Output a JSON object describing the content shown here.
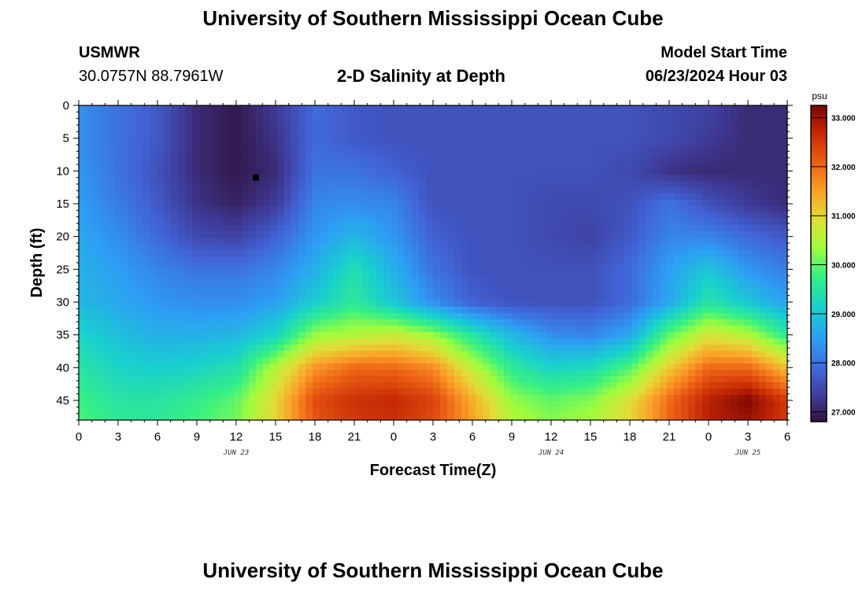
{
  "header": {
    "title": "University of Southern Mississippi Ocean Cube",
    "station": "USMWR",
    "coords": "30.0757N  88.7961W",
    "subtitle": "2-D Salinity at Depth",
    "start_label": "Model Start Time",
    "start_value": "06/23/2024 Hour 03"
  },
  "footer": {
    "title": "University of Southern Mississippi Ocean Cube"
  },
  "chart_data": {
    "type": "heatmap",
    "title": "2-D Salinity at Depth",
    "xlabel": "Forecast Time(Z)",
    "ylabel": "Depth (ft)",
    "x_ticks": [
      "0",
      "3",
      "6",
      "9",
      "12",
      "15",
      "18",
      "21",
      "0",
      "3",
      "6",
      "9",
      "12",
      "15",
      "18",
      "21",
      "0",
      "3",
      "6"
    ],
    "x_range_hours": [
      0,
      54
    ],
    "y_ticks": [
      0,
      5,
      10,
      15,
      20,
      25,
      30,
      35,
      40,
      45
    ],
    "ylim": [
      0,
      48
    ],
    "date_labels": [
      {
        "label": "JUN 23",
        "hour": 12
      },
      {
        "label": "JUN 24",
        "hour": 36
      },
      {
        "label": "JUN 25",
        "hour": 51
      }
    ],
    "colorbar": {
      "unit": "psu",
      "range": [
        26.8,
        33.25
      ],
      "ticks": [
        "27.000",
        "28.000",
        "29.000",
        "30.000",
        "31.000",
        "32.000",
        "33.000"
      ],
      "tick_values": [
        27,
        28,
        29,
        30,
        31,
        32,
        33
      ]
    },
    "marker": {
      "hour": 13.5,
      "depth": 11
    },
    "salinity_samples": {
      "hours": [
        0,
        3,
        6,
        9,
        12,
        15,
        18,
        21,
        24,
        27,
        30,
        33,
        36,
        39,
        42,
        45,
        48,
        51,
        54
      ],
      "depths": [
        0,
        5,
        10,
        15,
        20,
        25,
        30,
        35,
        40,
        45,
        48
      ],
      "values": [
        [
          28.3,
          28.0,
          27.7,
          27.1,
          26.9,
          27.3,
          27.9,
          27.7,
          27.6,
          27.6,
          27.6,
          27.6,
          27.6,
          27.6,
          27.6,
          27.5,
          27.4,
          27.1,
          27.1
        ],
        [
          28.3,
          28.0,
          27.7,
          27.1,
          26.9,
          27.2,
          27.9,
          27.7,
          27.6,
          27.6,
          27.6,
          27.6,
          27.6,
          27.6,
          27.6,
          27.5,
          27.3,
          27.1,
          27.1
        ],
        [
          28.4,
          28.0,
          27.6,
          27.1,
          26.9,
          27.1,
          28.0,
          28.0,
          27.8,
          27.6,
          27.6,
          27.6,
          27.6,
          27.6,
          27.5,
          27.2,
          27.1,
          27.1,
          27.1
        ],
        [
          28.5,
          28.1,
          27.7,
          27.2,
          27.0,
          27.3,
          28.2,
          28.3,
          28.2,
          27.6,
          27.6,
          27.6,
          27.5,
          27.5,
          27.6,
          28.0,
          27.6,
          27.3,
          27.1
        ],
        [
          28.6,
          28.3,
          27.9,
          27.5,
          27.4,
          27.8,
          28.4,
          28.8,
          28.4,
          27.8,
          27.6,
          27.6,
          27.5,
          27.4,
          27.7,
          28.2,
          28.2,
          27.9,
          27.7
        ],
        [
          28.7,
          28.5,
          28.2,
          28.0,
          28.0,
          28.2,
          28.7,
          29.4,
          28.7,
          28.0,
          27.6,
          27.6,
          27.6,
          27.6,
          27.9,
          28.5,
          29.0,
          28.4,
          28.1
        ],
        [
          28.8,
          28.6,
          28.4,
          28.3,
          28.3,
          28.5,
          29.1,
          29.6,
          29.0,
          28.3,
          27.8,
          27.6,
          27.6,
          27.6,
          27.9,
          28.6,
          29.5,
          29.0,
          28.5
        ],
        [
          29.2,
          28.9,
          28.7,
          28.7,
          28.8,
          29.2,
          30.3,
          30.5,
          30.7,
          30.3,
          29.5,
          28.8,
          28.3,
          28.2,
          28.6,
          30.0,
          30.8,
          30.5,
          29.6
        ],
        [
          29.5,
          29.2,
          29.1,
          29.2,
          29.4,
          30.5,
          31.6,
          32.0,
          32.0,
          31.7,
          30.6,
          29.6,
          29.2,
          29.3,
          29.9,
          31.1,
          32.0,
          32.0,
          31.2
        ],
        [
          29.8,
          29.5,
          29.5,
          29.7,
          30.0,
          31.0,
          32.3,
          32.6,
          32.7,
          32.4,
          31.4,
          30.3,
          30.0,
          30.2,
          30.9,
          32.0,
          32.8,
          33.2,
          32.5
        ],
        [
          29.9,
          29.6,
          29.6,
          29.8,
          30.1,
          31.0,
          32.2,
          32.5,
          32.6,
          32.3,
          31.5,
          30.5,
          30.2,
          30.4,
          31.0,
          32.0,
          32.8,
          33.0,
          32.5
        ]
      ]
    }
  }
}
